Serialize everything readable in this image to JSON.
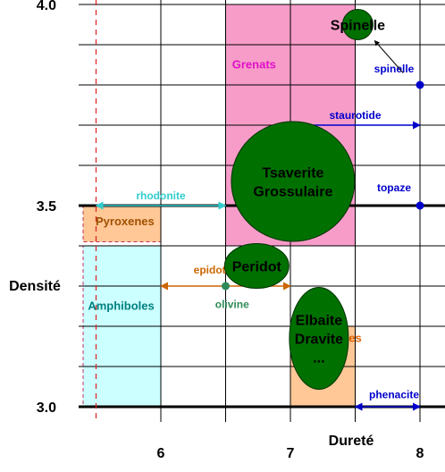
{
  "chart_data": {
    "type": "scatter",
    "xlabel": "Dureté",
    "ylabel": "Densité",
    "xlim": [
      5.4,
      8.2
    ],
    "ylim": [
      2.99,
      4.0
    ],
    "x_ticks": [
      6,
      7,
      8
    ],
    "x_tick_labels": [
      "6",
      "7",
      "8"
    ],
    "y_ticks": [
      3.0,
      3.5,
      4.0
    ],
    "y_tick_labels": [
      "3.0",
      "3.5",
      "4.0"
    ],
    "grid": true,
    "reference_line_x": 5.5,
    "regions": [
      {
        "label": "Grenats",
        "x": [
          6.5,
          7.5
        ],
        "y": [
          3.4,
          4.0
        ],
        "fill": "#f79cc9",
        "label_color": "#e010c8"
      },
      {
        "label": "Pyroxenes",
        "x": [
          5.4,
          6.0
        ],
        "y": [
          3.41,
          3.5
        ],
        "fill": "#ffc896",
        "label_color": "#a05000"
      },
      {
        "label": "Amphiboles",
        "x": [
          5.4,
          6.0
        ],
        "y": [
          3.0,
          3.4
        ],
        "fill": "#ccffff",
        "label_color": "#008080"
      },
      {
        "label": "Tourmalines",
        "x": [
          7.0,
          7.5
        ],
        "y": [
          3.0,
          3.2
        ],
        "fill": "#ffc896",
        "label_color": "#e06000"
      }
    ],
    "gems": [
      {
        "label": "Spinelle",
        "x": 7.52,
        "y": 3.95,
        "size": 0.12
      },
      {
        "label": "Tsaverite\nGrossulaire",
        "x": 7.02,
        "y": 3.56,
        "size": 0.48
      },
      {
        "label": "Peridot",
        "x": 6.74,
        "y": 3.35,
        "size": 0.25
      },
      {
        "label": "Elbaite\nDravite\n...",
        "x": 7.22,
        "y": 3.17,
        "size": 0.22
      }
    ],
    "minerals": [
      {
        "label": "spinelle",
        "x": 8.0,
        "y": 3.8,
        "color": "#0000cc"
      },
      {
        "label": "topaze",
        "x": 8.0,
        "y": 3.5,
        "color": "#0000cc"
      },
      {
        "label": "olivine",
        "x": 6.5,
        "y": 3.3,
        "color": "#2e8b57"
      }
    ],
    "ranges": [
      {
        "label": "staurotide",
        "x": [
          7.0,
          8.0
        ],
        "y": 3.7,
        "color": "#0000cc"
      },
      {
        "label": "rhodonite",
        "x": [
          5.5,
          6.5
        ],
        "y": 3.5,
        "color": "#33cccc"
      },
      {
        "label": "epidote",
        "x": [
          6.0,
          7.0
        ],
        "y": 3.3,
        "color": "#cc6600"
      },
      {
        "label": "phenacite",
        "x": [
          7.5,
          8.0
        ],
        "y": 3.0,
        "color": "#0000cc"
      }
    ],
    "legend": "none"
  }
}
